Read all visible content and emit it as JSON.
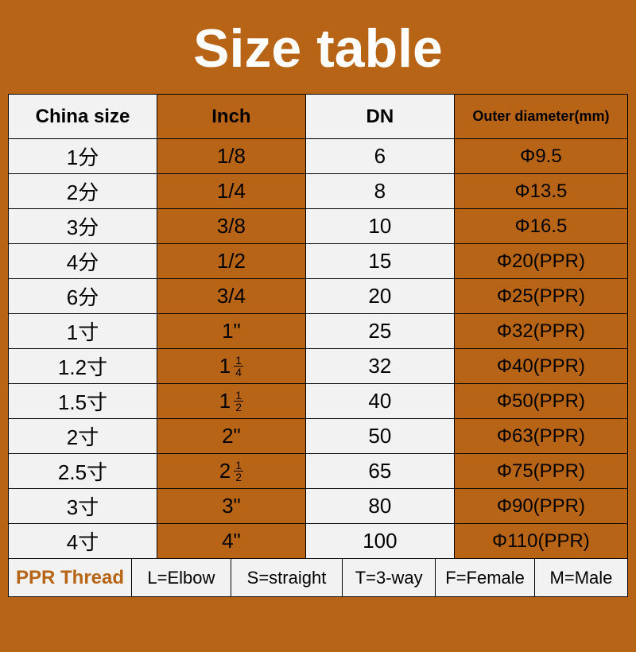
{
  "title": "Size table",
  "colors": {
    "page_bg": "#b86416",
    "title_color": "#ffffff",
    "cell_alt_bg": "#f2f2f2",
    "cell_accent_bg": "#b86416",
    "border_color": "#000000",
    "legend_label_color": "#b86416"
  },
  "typography": {
    "title_fontsize": 68,
    "header_fontsize": 24,
    "cell_fontsize": 26,
    "legend_fontsize": 22
  },
  "table": {
    "columns": [
      "China size",
      "Inch",
      "DN",
      "Outer diameter(mm)"
    ],
    "column_widths_pct": [
      24,
      24,
      24,
      28
    ],
    "column_bg": [
      "#f2f2f2",
      "#b86416",
      "#f2f2f2",
      "#b86416"
    ],
    "rows": [
      {
        "china": "1分",
        "inch": "1/8",
        "inch_type": "text",
        "dn": "6",
        "outer": "Φ9.5"
      },
      {
        "china": "2分",
        "inch": "1/4",
        "inch_type": "text",
        "dn": "8",
        "outer": "Φ13.5"
      },
      {
        "china": "3分",
        "inch": "3/8",
        "inch_type": "text",
        "dn": "10",
        "outer": "Φ16.5"
      },
      {
        "china": "4分",
        "inch": "1/2",
        "inch_type": "text",
        "dn": "15",
        "outer": "Φ20(PPR)"
      },
      {
        "china": "6分",
        "inch": "3/4",
        "inch_type": "text",
        "dn": "20",
        "outer": "Φ25(PPR)"
      },
      {
        "china": "1寸",
        "inch": "1\"",
        "inch_type": "text",
        "dn": "25",
        "outer": "Φ32(PPR)"
      },
      {
        "china": "1.2寸",
        "inch_whole": "1",
        "inch_num": "1",
        "inch_den": "4",
        "inch_type": "mixed",
        "dn": "32",
        "outer": "Φ40(PPR)"
      },
      {
        "china": "1.5寸",
        "inch_whole": "1",
        "inch_num": "1",
        "inch_den": "2",
        "inch_type": "mixed",
        "dn": "40",
        "outer": "Φ50(PPR)"
      },
      {
        "china": "2寸",
        "inch": "2\"",
        "inch_type": "text",
        "dn": "50",
        "outer": "Φ63(PPR)"
      },
      {
        "china": "2.5寸",
        "inch_whole": "2",
        "inch_num": "1",
        "inch_den": "2",
        "inch_type": "mixed",
        "dn": "65",
        "outer": "Φ75(PPR)"
      },
      {
        "china": "3寸",
        "inch": "3\"",
        "inch_type": "text",
        "dn": "80",
        "outer": "Φ90(PPR)"
      },
      {
        "china": "4寸",
        "inch": "4\"",
        "inch_type": "text",
        "dn": "100",
        "outer": "Φ110(PPR)"
      }
    ]
  },
  "legend": {
    "label": "PPR Thread",
    "items": [
      "L=Elbow",
      "S=straight",
      "T=3-way",
      "F=Female",
      "M=Male"
    ],
    "widths_pct": [
      20,
      16,
      18,
      15,
      16,
      15
    ]
  }
}
